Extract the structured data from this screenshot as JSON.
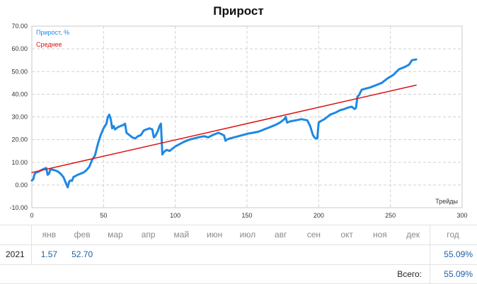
{
  "chart_data": {
    "type": "line",
    "title": "Прирост",
    "xlabel": "Трейды",
    "ylabel": "",
    "xlim": [
      0,
      300
    ],
    "ylim": [
      -10,
      70
    ],
    "xticks": [
      0,
      50,
      100,
      150,
      200,
      250,
      300
    ],
    "yticks": [
      "-10.00",
      "0.00",
      "10.00",
      "20.00",
      "30.00",
      "40.00",
      "50.00",
      "60.00",
      "70.00"
    ],
    "grid": true,
    "legend_position": "top-left",
    "series": [
      {
        "name": "Прирост, %",
        "color": "#1e88e5",
        "points": [
          [
            0,
            2
          ],
          [
            1,
            2.5
          ],
          [
            2,
            5
          ],
          [
            3,
            5.5
          ],
          [
            5,
            6
          ],
          [
            8,
            7
          ],
          [
            10,
            7.5
          ],
          [
            11,
            4.5
          ],
          [
            12,
            5
          ],
          [
            13,
            7
          ],
          [
            14,
            6.8
          ],
          [
            16,
            6.5
          ],
          [
            18,
            6
          ],
          [
            20,
            5
          ],
          [
            22,
            3.5
          ],
          [
            23,
            2
          ],
          [
            24,
            0.5
          ],
          [
            25,
            -1
          ],
          [
            26,
            1.5
          ],
          [
            27,
            2
          ],
          [
            28,
            1.8
          ],
          [
            29,
            3.5
          ],
          [
            32,
            4.5
          ],
          [
            34,
            5
          ],
          [
            36,
            5.5
          ],
          [
            38,
            6.5
          ],
          [
            40,
            8
          ],
          [
            42,
            11
          ],
          [
            44,
            13
          ],
          [
            46,
            18
          ],
          [
            48,
            22
          ],
          [
            50,
            25
          ],
          [
            52,
            27
          ],
          [
            53,
            30
          ],
          [
            54,
            31
          ],
          [
            55,
            29
          ],
          [
            56,
            25
          ],
          [
            57,
            26
          ],
          [
            58,
            24.5
          ],
          [
            60,
            25.5
          ],
          [
            62,
            26
          ],
          [
            64,
            26.5
          ],
          [
            65,
            27
          ],
          [
            66,
            23
          ],
          [
            68,
            22
          ],
          [
            70,
            21
          ],
          [
            72,
            20.5
          ],
          [
            74,
            21.5
          ],
          [
            76,
            22
          ],
          [
            78,
            24
          ],
          [
            80,
            24.5
          ],
          [
            82,
            25
          ],
          [
            84,
            24.5
          ],
          [
            85,
            21
          ],
          [
            86,
            21.5
          ],
          [
            88,
            24
          ],
          [
            89,
            26
          ],
          [
            90,
            27
          ],
          [
            91,
            13.5
          ],
          [
            92,
            14.5
          ],
          [
            94,
            15.5
          ],
          [
            96,
            15
          ],
          [
            98,
            16
          ],
          [
            100,
            17
          ],
          [
            103,
            18
          ],
          [
            106,
            19
          ],
          [
            110,
            20
          ],
          [
            113,
            20.5
          ],
          [
            116,
            21
          ],
          [
            120,
            21.5
          ],
          [
            123,
            21
          ],
          [
            126,
            22
          ],
          [
            128,
            22.5
          ],
          [
            130,
            23
          ],
          [
            132,
            22.5
          ],
          [
            134,
            21.8
          ],
          [
            135,
            19.5
          ],
          [
            136,
            20
          ],
          [
            138,
            20.5
          ],
          [
            141,
            21
          ],
          [
            144,
            21.5
          ],
          [
            147,
            22
          ],
          [
            150,
            22.5
          ],
          [
            152,
            22.8
          ],
          [
            154,
            23
          ],
          [
            158,
            23.5
          ],
          [
            162,
            24.5
          ],
          [
            166,
            25.5
          ],
          [
            170,
            26.5
          ],
          [
            173,
            27.5
          ],
          [
            175,
            28.5
          ],
          [
            176,
            29
          ],
          [
            177,
            30
          ],
          [
            178,
            27.5
          ],
          [
            180,
            28
          ],
          [
            184,
            28.5
          ],
          [
            188,
            29
          ],
          [
            192,
            28.5
          ],
          [
            194,
            26
          ],
          [
            196,
            22
          ],
          [
            197,
            21
          ],
          [
            198,
            20.5
          ],
          [
            199,
            20.5
          ],
          [
            200,
            27.5
          ],
          [
            201,
            28
          ],
          [
            204,
            29
          ],
          [
            206,
            30
          ],
          [
            208,
            31
          ],
          [
            212,
            32
          ],
          [
            215,
            33
          ],
          [
            218,
            33.5
          ],
          [
            220,
            34
          ],
          [
            223,
            34.5
          ],
          [
            224,
            34
          ],
          [
            225,
            33.5
          ],
          [
            226,
            34
          ],
          [
            227,
            39
          ],
          [
            228,
            39.5
          ],
          [
            230,
            42
          ],
          [
            233,
            42.5
          ],
          [
            236,
            43
          ],
          [
            240,
            44
          ],
          [
            244,
            45
          ],
          [
            248,
            47
          ],
          [
            252,
            48.5
          ],
          [
            256,
            51
          ],
          [
            260,
            52
          ],
          [
            263,
            53
          ],
          [
            265,
            55
          ],
          [
            268,
            55.3
          ]
        ]
      },
      {
        "name": "Среднее",
        "color": "#dd1111",
        "points": [
          [
            0,
            5.5
          ],
          [
            268,
            44
          ]
        ]
      }
    ]
  },
  "monthly_table": {
    "months": [
      "янв",
      "фев",
      "мар",
      "апр",
      "май",
      "июн",
      "июл",
      "авг",
      "сен",
      "окт",
      "ноя",
      "дек"
    ],
    "year_header": "год",
    "rows": [
      {
        "year": "2021",
        "values": [
          "1.57",
          "52.70",
          "",
          "",
          "",
          "",
          "",
          "",
          "",
          "",
          "",
          ""
        ],
        "total": "55.09%"
      }
    ],
    "total_label": "Всего:",
    "total_value": "55.09%"
  }
}
